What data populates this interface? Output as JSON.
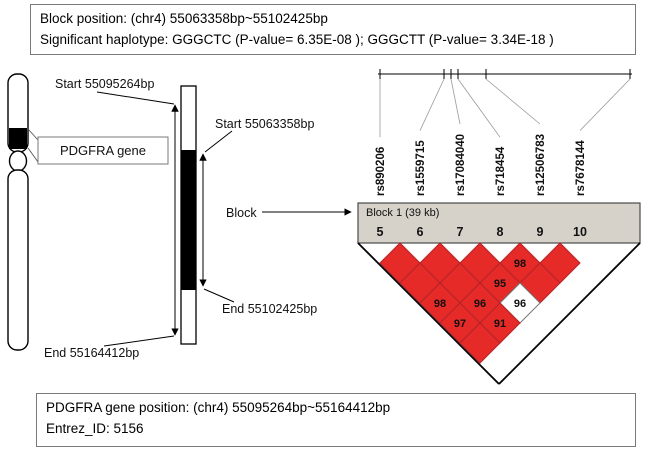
{
  "top_box": {
    "line1": "Block position: (chr4) 55063358bp~55102425bp",
    "line2": "Significant haplotype: GGGCTC (P-value= 6.35E-08 ); GGGCTT (P-value= 3.34E-18 )"
  },
  "bottom_box": {
    "line1": "PDGFRA gene position: (chr4) 55095264bp~55164412bp",
    "line2": "Entrez_ID: 5156"
  },
  "diagram": {
    "gene_label": "PDGFRA gene",
    "gene_start_label": "Start 55095264bp",
    "gene_end_label": "End 55164412bp",
    "block_start_label": "Start 55063358bp",
    "block_end_label": "End 55102425bp",
    "block_label": "Block"
  },
  "ld_plot": {
    "block_title": "Block 1 (39 kb)",
    "snps": [
      {
        "index": "5",
        "rsid": "rs890206"
      },
      {
        "index": "6",
        "rsid": "rs1559715"
      },
      {
        "index": "7",
        "rsid": "rs17084040"
      },
      {
        "index": "8",
        "rsid": "rs718454"
      },
      {
        "index": "9",
        "rsid": "rs12506783"
      },
      {
        "index": "10",
        "rsid": "rs7678144"
      }
    ],
    "colors": {
      "strong_ld": "#e52a28",
      "weak_ld": "#ffffff",
      "header_bg": "#d6d2c9"
    },
    "cells": [
      {
        "row": 1,
        "col": 0,
        "value": ""
      },
      {
        "row": 1,
        "col": 1,
        "value": ""
      },
      {
        "row": 1,
        "col": 2,
        "value": ""
      },
      {
        "row": 1,
        "col": 3,
        "value": "98"
      },
      {
        "row": 1,
        "col": 4,
        "value": ""
      },
      {
        "row": 2,
        "col": 0,
        "value": ""
      },
      {
        "row": 2,
        "col": 1,
        "value": ""
      },
      {
        "row": 2,
        "col": 2,
        "value": "95"
      },
      {
        "row": 2,
        "col": 3,
        "value": ""
      },
      {
        "row": 3,
        "col": 0,
        "value": "98"
      },
      {
        "row": 3,
        "col": 1,
        "value": "96"
      },
      {
        "row": 3,
        "col": 2,
        "value": "96",
        "white": true
      },
      {
        "row": 4,
        "col": 0,
        "value": "97"
      },
      {
        "row": 4,
        "col": 1,
        "value": "91"
      },
      {
        "row": 5,
        "col": 0,
        "value": ""
      }
    ]
  }
}
